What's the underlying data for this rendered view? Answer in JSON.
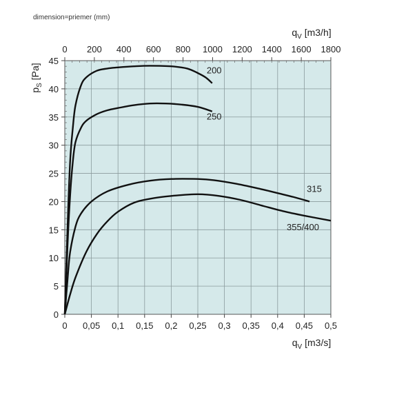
{
  "caption": "dimension=priemer (mm)",
  "chart_data": {
    "type": "line",
    "x_bottom": {
      "label_base": "q",
      "label_sub": "V",
      "label_unit": "[m3/s]",
      "range": [
        0,
        0.5
      ],
      "ticks": [
        0,
        0.05,
        0.1,
        0.15,
        0.2,
        0.25,
        0.3,
        0.35,
        0.4,
        0.45,
        0.5
      ],
      "tick_labels": [
        "0",
        "0,05",
        "0,1",
        "0,15",
        "0,2",
        "0,25",
        "0,3",
        "0,35",
        "0,4",
        "0,45",
        "0,5"
      ]
    },
    "x_top": {
      "label_base": "q",
      "label_sub": "V",
      "label_unit": "[m3/h]",
      "range": [
        0,
        1800
      ],
      "ticks": [
        0,
        200,
        400,
        600,
        800,
        1000,
        1200,
        1400,
        1600,
        1800
      ],
      "tick_labels": [
        "0",
        "200",
        "400",
        "600",
        "800",
        "1000",
        "1200",
        "1400",
        "1600",
        "1800"
      ]
    },
    "y": {
      "label_base": "p",
      "label_sub": "S",
      "label_unit": "[Pa]",
      "range": [
        0,
        45
      ],
      "ticks": [
        0,
        5,
        10,
        15,
        20,
        25,
        30,
        35,
        40,
        45
      ],
      "tick_labels": [
        "0",
        "5",
        "10",
        "15",
        "20",
        "25",
        "30",
        "35",
        "40",
        "45"
      ]
    },
    "grid": true,
    "series": [
      {
        "name": "200",
        "x": [
          0,
          0.005,
          0.01,
          0.015,
          0.02,
          0.03,
          0.04,
          0.06,
          0.08,
          0.1,
          0.13,
          0.16,
          0.2,
          0.23,
          0.25,
          0.265,
          0.277
        ],
        "y": [
          0,
          15,
          27,
          33,
          37,
          40.5,
          42,
          43.2,
          43.6,
          43.8,
          44.0,
          44.1,
          44.0,
          43.6,
          42.8,
          42.0,
          41.0
        ]
      },
      {
        "name": "250",
        "x": [
          0,
          0.005,
          0.01,
          0.015,
          0.02,
          0.03,
          0.04,
          0.06,
          0.08,
          0.1,
          0.13,
          0.16,
          0.19,
          0.22,
          0.25,
          0.277
        ],
        "y": [
          0,
          12,
          21,
          27,
          30.5,
          33.0,
          34.3,
          35.5,
          36.2,
          36.6,
          37.1,
          37.4,
          37.4,
          37.2,
          36.8,
          36.0
        ]
      },
      {
        "name": "315",
        "x": [
          0,
          0.005,
          0.01,
          0.02,
          0.03,
          0.05,
          0.08,
          0.12,
          0.16,
          0.2,
          0.25,
          0.28,
          0.32,
          0.36,
          0.4,
          0.43,
          0.46
        ],
        "y": [
          0,
          6,
          11,
          15.5,
          17.8,
          20.0,
          21.8,
          23.0,
          23.7,
          24.0,
          24.0,
          23.8,
          23.2,
          22.4,
          21.5,
          20.8,
          20.0
        ]
      },
      {
        "name": "355/400",
        "x": [
          0,
          0.01,
          0.02,
          0.04,
          0.06,
          0.08,
          0.1,
          0.13,
          0.16,
          0.2,
          0.25,
          0.29,
          0.33,
          0.37,
          0.41,
          0.45,
          0.5
        ],
        "y": [
          0,
          3.5,
          6.5,
          11.0,
          14.2,
          16.5,
          18.2,
          19.8,
          20.5,
          21.0,
          21.3,
          21.0,
          20.3,
          19.3,
          18.3,
          17.5,
          16.6
        ]
      }
    ]
  }
}
